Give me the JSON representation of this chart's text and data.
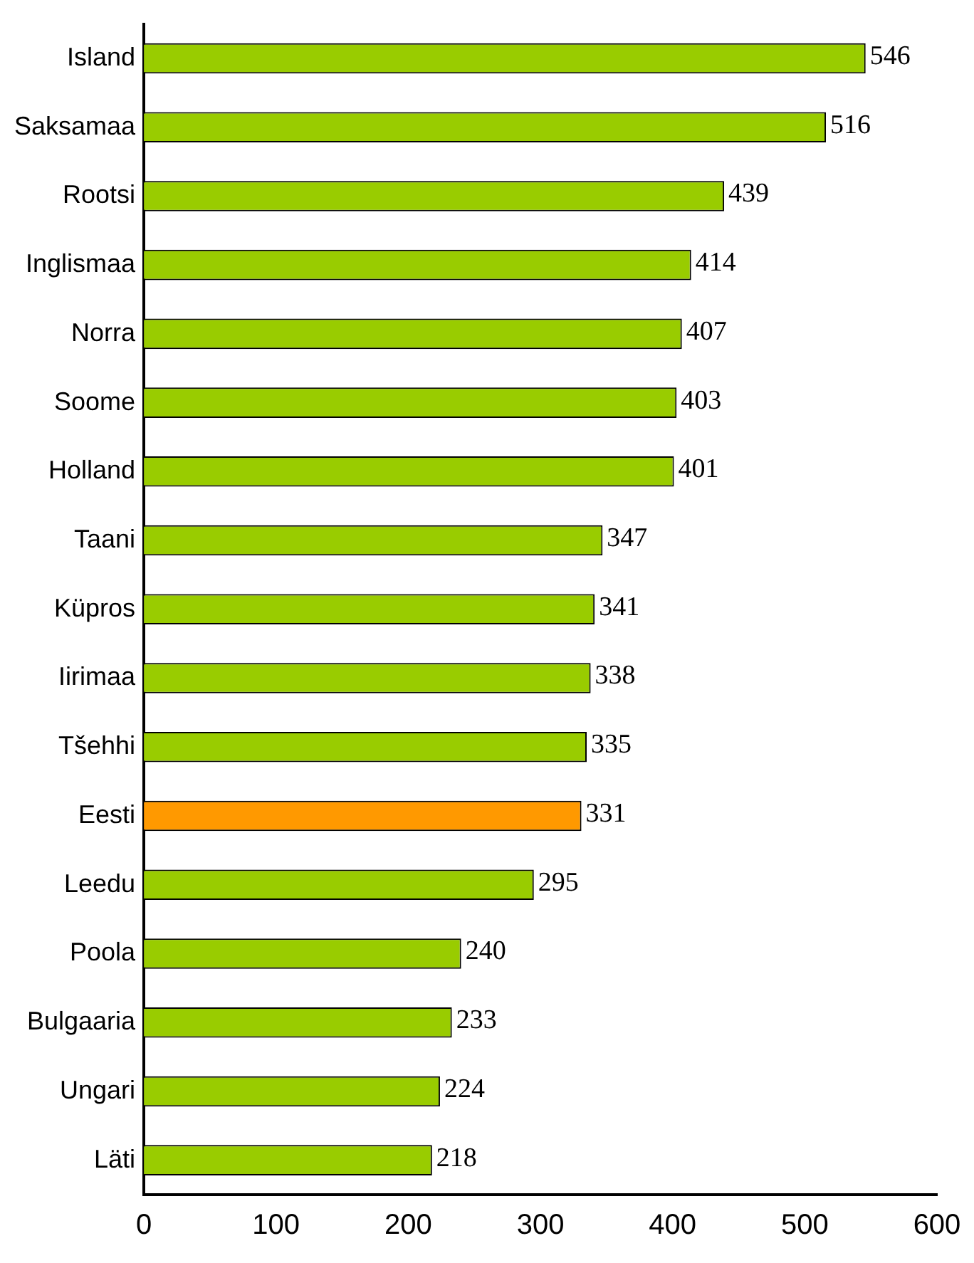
{
  "chart_data": {
    "type": "bar",
    "orientation": "horizontal",
    "categories": [
      "Island",
      "Saksamaa",
      "Rootsi",
      "Inglismaa",
      "Norra",
      "Soome",
      "Holland",
      "Taani",
      "Küpros",
      "Iirimaa",
      "Tšehhi",
      "Eesti",
      "Leedu",
      "Poola",
      "Bulgaaria",
      "Ungari",
      "Läti"
    ],
    "values": [
      546,
      516,
      439,
      414,
      407,
      403,
      401,
      347,
      341,
      338,
      335,
      331,
      295,
      240,
      233,
      224,
      218
    ],
    "colors": [
      "#99cc00",
      "#99cc00",
      "#99cc00",
      "#99cc00",
      "#99cc00",
      "#99cc00",
      "#99cc00",
      "#99cc00",
      "#99cc00",
      "#99cc00",
      "#99cc00",
      "#ff9900",
      "#99cc00",
      "#99cc00",
      "#99cc00",
      "#99cc00",
      "#99cc00"
    ],
    "xlim": [
      0,
      600
    ],
    "xticks": [
      0,
      100,
      200,
      300,
      400,
      500,
      600
    ],
    "data_labels": true,
    "grid": false,
    "legend": false
  }
}
